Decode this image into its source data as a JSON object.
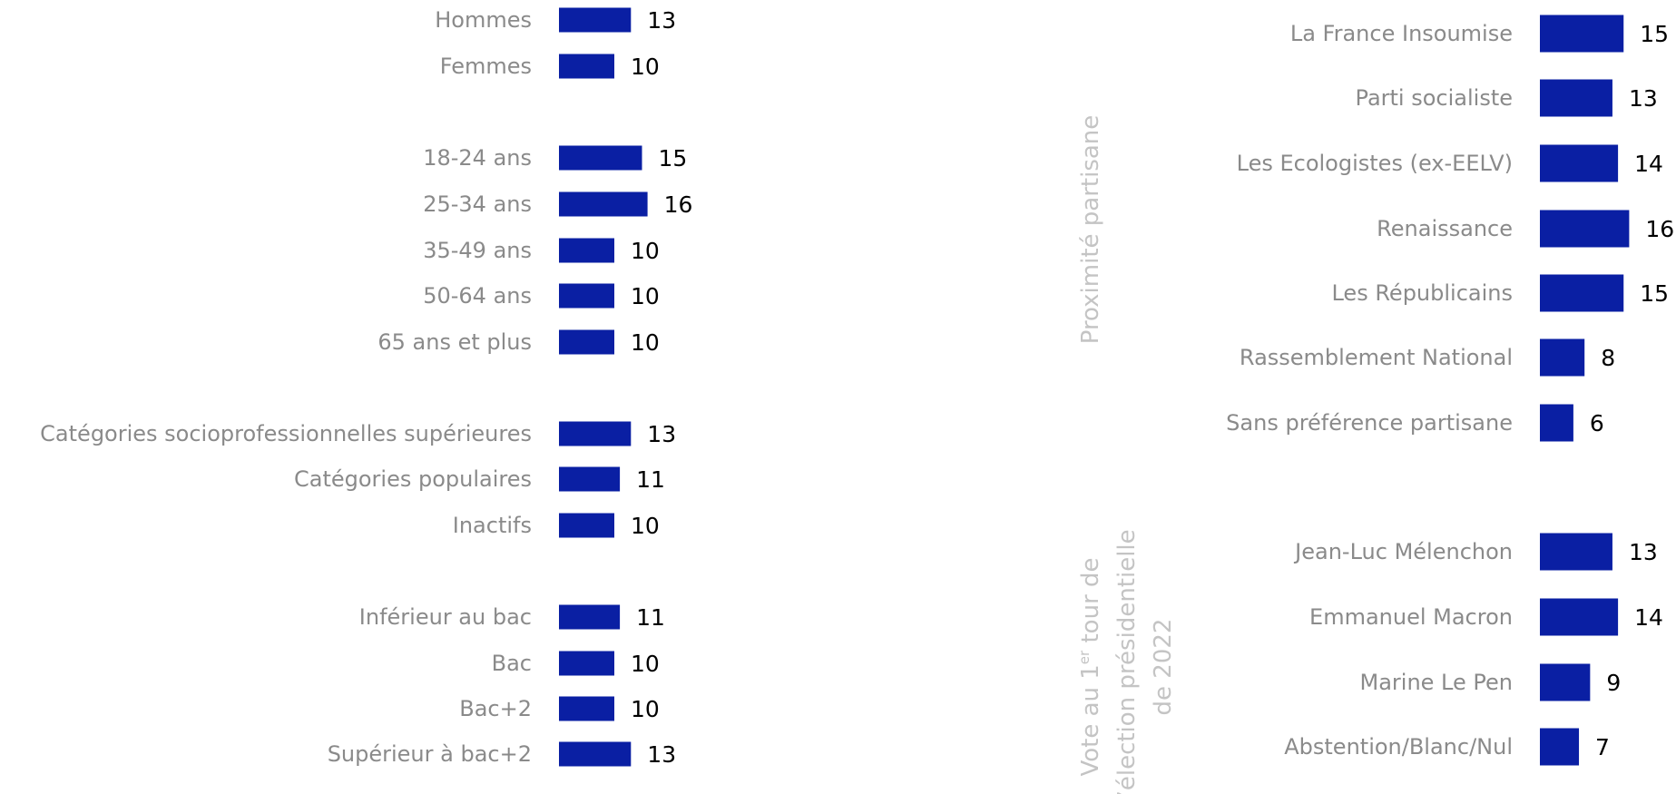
{
  "colors": {
    "bar": "#0a1fa3",
    "category_text": "#8a8a8a",
    "value_text": "#000000",
    "section_text": "#c4c4c4"
  },
  "chart_data": [
    {
      "type": "bar",
      "orientation": "horizontal",
      "title": "",
      "categories": [
        "Hommes",
        "Femmes",
        "18-24 ans",
        "25-34 ans",
        "35-49 ans",
        "50-64 ans",
        "65 ans et plus",
        "Catégories socioprofessionnelles supérieures",
        "Catégories populaires",
        "Inactifs",
        "Inférieur au bac",
        "Bac",
        "Bac+2",
        "Supérieur à bac+2"
      ],
      "values": [
        13,
        10,
        15,
        16,
        10,
        10,
        10,
        13,
        11,
        10,
        11,
        10,
        10,
        13
      ],
      "xlim": [
        0,
        16
      ]
    },
    {
      "type": "bar",
      "orientation": "horizontal",
      "title": "",
      "sections": [
        {
          "label": "Proximité partisane",
          "categories": [
            "La France Insoumise",
            "Parti socialiste",
            "Les Ecologistes (ex-EELV)",
            "Renaissance",
            "Les Républicains",
            "Rassemblement National",
            "Sans préférence partisane"
          ],
          "values": [
            15,
            13,
            14,
            16,
            15,
            8,
            6
          ]
        },
        {
          "label_parts": [
            "Vote au 1",
            "er",
            " tour de",
            "l’élection présidentielle",
            "de 2022"
          ],
          "categories": [
            "Jean-Luc Mélenchon",
            "Emmanuel Macron",
            "Marine Le Pen",
            "Abstention/Blanc/Nul"
          ],
          "values": [
            13,
            14,
            9,
            7
          ]
        }
      ],
      "xlim": [
        0,
        16
      ]
    }
  ]
}
